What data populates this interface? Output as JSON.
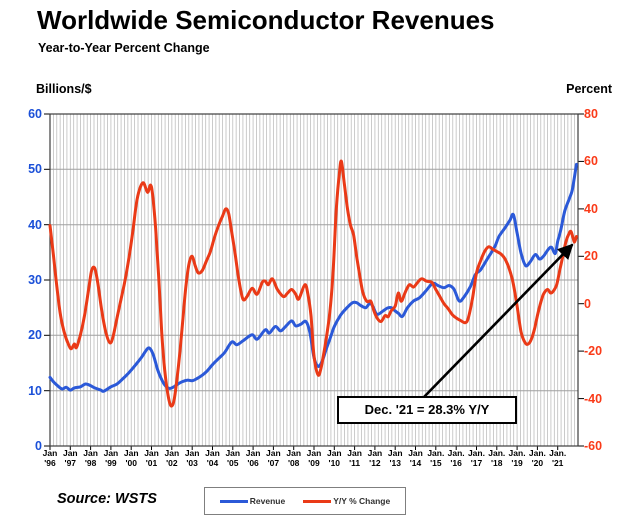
{
  "title": "Worldwide Semiconductor Revenues",
  "subtitle": "Year-to-Year Percent Change",
  "source": "Source: WSTS",
  "chart_data": {
    "type": "line",
    "title": "Worldwide Semiconductor Revenues",
    "subtitle": "Year-to-Year Percent Change",
    "left_axis": {
      "label": "Billions/$",
      "min": 0,
      "max": 60,
      "ticks": [
        0,
        10,
        20,
        30,
        40,
        50,
        60
      ],
      "color": "#1b50d8"
    },
    "right_axis": {
      "label": "Percent",
      "min": -60,
      "max": 80,
      "ticks": [
        -60,
        -40,
        -20,
        0,
        20,
        40,
        60,
        80
      ],
      "color": "#fa3a18"
    },
    "x_axis": {
      "start": 1996,
      "end": 2022,
      "labels": [
        {
          "m": "Jan",
          "y": "'96"
        },
        {
          "m": "Jan",
          "y": "'97"
        },
        {
          "m": "Jan",
          "y": "'98"
        },
        {
          "m": "Jan",
          "y": "'99"
        },
        {
          "m": "Jan",
          "y": "'00"
        },
        {
          "m": "Jan",
          "y": "'01"
        },
        {
          "m": "Jan",
          "y": "'02"
        },
        {
          "m": "Jan",
          "y": "'03"
        },
        {
          "m": "Jan",
          "y": "'04"
        },
        {
          "m": "Jan",
          "y": "'05"
        },
        {
          "m": "Jan",
          "y": "'06"
        },
        {
          "m": "Jan",
          "y": "'07"
        },
        {
          "m": "Jan",
          "y": "'08"
        },
        {
          "m": "Jan",
          "y": "'09"
        },
        {
          "m": "Jan",
          "y": "'10"
        },
        {
          "m": "Jan",
          "y": "'11"
        },
        {
          "m": "Jan",
          "y": "'12"
        },
        {
          "m": "Jan",
          "y": "'13"
        },
        {
          "m": "Jan",
          "y": "'14"
        },
        {
          "m": "Jan.",
          "y": "'15"
        },
        {
          "m": "Jan.",
          "y": "'16"
        },
        {
          "m": "Jan.",
          "y": "'17"
        },
        {
          "m": "Jan.",
          "y": "'18"
        },
        {
          "m": "Jan.",
          "y": "'19"
        },
        {
          "m": "Jan.",
          "y": "'20"
        },
        {
          "m": "Jan.",
          "y": "'21"
        }
      ]
    },
    "grid": {
      "h_color": "#a0a0a0",
      "v_color": "#bdbdbd",
      "v_interval_months": 2,
      "border_color": "#3c3c3c"
    },
    "series": [
      {
        "name": "Revenue",
        "axis": "left",
        "color": "#2b59d8",
        "width": 3,
        "points": [
          [
            1996.0,
            12.4
          ],
          [
            1996.17,
            11.6
          ],
          [
            1996.4,
            10.8
          ],
          [
            1996.6,
            10.3
          ],
          [
            1996.8,
            10.6
          ],
          [
            1997.0,
            10.1
          ],
          [
            1997.2,
            10.5
          ],
          [
            1997.5,
            10.7
          ],
          [
            1997.75,
            11.2
          ],
          [
            1998.0,
            10.9
          ],
          [
            1998.2,
            10.5
          ],
          [
            1998.5,
            10.1
          ],
          [
            1998.65,
            9.9
          ],
          [
            1999.0,
            10.7
          ],
          [
            1999.3,
            11.2
          ],
          [
            1999.6,
            12.2
          ],
          [
            1999.9,
            13.3
          ],
          [
            2000.2,
            14.6
          ],
          [
            2000.5,
            16.0
          ],
          [
            2000.8,
            17.6
          ],
          [
            2000.95,
            17.5
          ],
          [
            2001.1,
            16.3
          ],
          [
            2001.3,
            13.8
          ],
          [
            2001.5,
            12.0
          ],
          [
            2001.7,
            10.8
          ],
          [
            2001.9,
            10.4
          ],
          [
            2002.1,
            10.7
          ],
          [
            2002.3,
            11.2
          ],
          [
            2002.5,
            11.6
          ],
          [
            2002.75,
            11.9
          ],
          [
            2003.0,
            11.8
          ],
          [
            2003.2,
            12.1
          ],
          [
            2003.5,
            12.8
          ],
          [
            2003.75,
            13.6
          ],
          [
            2004.0,
            14.7
          ],
          [
            2004.3,
            15.8
          ],
          [
            2004.6,
            16.9
          ],
          [
            2004.95,
            18.8
          ],
          [
            2005.2,
            18.3
          ],
          [
            2005.5,
            19.0
          ],
          [
            2005.95,
            20.1
          ],
          [
            2006.2,
            19.3
          ],
          [
            2006.6,
            21.0
          ],
          [
            2006.8,
            20.4
          ],
          [
            2007.1,
            21.6
          ],
          [
            2007.35,
            20.8
          ],
          [
            2007.6,
            21.6
          ],
          [
            2007.9,
            22.6
          ],
          [
            2008.1,
            21.7
          ],
          [
            2008.35,
            22.0
          ],
          [
            2008.6,
            22.5
          ],
          [
            2008.8,
            20.5
          ],
          [
            2009.0,
            16.0
          ],
          [
            2009.2,
            14.4
          ],
          [
            2009.4,
            15.3
          ],
          [
            2009.6,
            17.5
          ],
          [
            2009.8,
            19.5
          ],
          [
            2010.0,
            21.6
          ],
          [
            2010.3,
            23.6
          ],
          [
            2010.6,
            24.9
          ],
          [
            2010.9,
            25.9
          ],
          [
            2011.1,
            25.9
          ],
          [
            2011.3,
            25.4
          ],
          [
            2011.55,
            25.0
          ],
          [
            2011.75,
            25.8
          ],
          [
            2011.9,
            25.2
          ],
          [
            2012.1,
            23.8
          ],
          [
            2012.4,
            24.4
          ],
          [
            2012.6,
            24.9
          ],
          [
            2012.8,
            25.0
          ],
          [
            2013.0,
            24.4
          ],
          [
            2013.15,
            24.0
          ],
          [
            2013.35,
            23.4
          ],
          [
            2013.6,
            25.0
          ],
          [
            2013.9,
            26.2
          ],
          [
            2014.2,
            26.8
          ],
          [
            2014.5,
            28.0
          ],
          [
            2014.85,
            29.4
          ],
          [
            2015.1,
            29.0
          ],
          [
            2015.4,
            28.6
          ],
          [
            2015.65,
            29.0
          ],
          [
            2015.9,
            28.3
          ],
          [
            2016.15,
            26.2
          ],
          [
            2016.4,
            27.0
          ],
          [
            2016.7,
            28.8
          ],
          [
            2016.95,
            31.0
          ],
          [
            2017.2,
            31.8
          ],
          [
            2017.5,
            33.6
          ],
          [
            2017.9,
            36.0
          ],
          [
            2018.1,
            37.8
          ],
          [
            2018.4,
            39.4
          ],
          [
            2018.65,
            40.8
          ],
          [
            2018.82,
            41.8
          ],
          [
            2019.0,
            38.5
          ],
          [
            2019.2,
            34.8
          ],
          [
            2019.42,
            32.6
          ],
          [
            2019.65,
            33.3
          ],
          [
            2019.9,
            34.6
          ],
          [
            2020.1,
            33.8
          ],
          [
            2020.3,
            34.3
          ],
          [
            2020.55,
            35.6
          ],
          [
            2020.7,
            35.9
          ],
          [
            2020.88,
            34.8
          ],
          [
            2021.0,
            37.0
          ],
          [
            2021.15,
            39.0
          ],
          [
            2021.35,
            42.5
          ],
          [
            2021.55,
            44.5
          ],
          [
            2021.7,
            46.0
          ],
          [
            2021.8,
            48.0
          ],
          [
            2021.92,
            50.9
          ]
        ]
      },
      {
        "name": "Y/Y % Change",
        "axis": "right",
        "color": "#ea3a17",
        "width": 3,
        "points": [
          [
            1996.0,
            33
          ],
          [
            1996.15,
            22
          ],
          [
            1996.3,
            10
          ],
          [
            1996.5,
            -4
          ],
          [
            1996.7,
            -12
          ],
          [
            1996.9,
            -17
          ],
          [
            1997.05,
            -19
          ],
          [
            1997.2,
            -17
          ],
          [
            1997.3,
            -18.5
          ],
          [
            1997.5,
            -13
          ],
          [
            1997.7,
            -5
          ],
          [
            1997.9,
            6
          ],
          [
            1998.05,
            14
          ],
          [
            1998.2,
            15
          ],
          [
            1998.35,
            9
          ],
          [
            1998.55,
            -3
          ],
          [
            1998.75,
            -12
          ],
          [
            1998.95,
            -16.5
          ],
          [
            1999.1,
            -14
          ],
          [
            1999.3,
            -6
          ],
          [
            1999.5,
            2
          ],
          [
            1999.7,
            10
          ],
          [
            1999.9,
            20
          ],
          [
            2000.1,
            32
          ],
          [
            2000.25,
            42
          ],
          [
            2000.4,
            48
          ],
          [
            2000.6,
            51
          ],
          [
            2000.8,
            47
          ],
          [
            2000.95,
            50
          ],
          [
            2001.05,
            46
          ],
          [
            2001.2,
            32
          ],
          [
            2001.35,
            12
          ],
          [
            2001.5,
            -12
          ],
          [
            2001.65,
            -28
          ],
          [
            2001.8,
            -38
          ],
          [
            2001.95,
            -43
          ],
          [
            2002.1,
            -41
          ],
          [
            2002.25,
            -32
          ],
          [
            2002.4,
            -20
          ],
          [
            2002.55,
            -6
          ],
          [
            2002.7,
            8
          ],
          [
            2002.85,
            17
          ],
          [
            2003.0,
            20
          ],
          [
            2003.15,
            16
          ],
          [
            2003.3,
            13
          ],
          [
            2003.5,
            14
          ],
          [
            2003.7,
            18
          ],
          [
            2003.9,
            22
          ],
          [
            2004.1,
            28
          ],
          [
            2004.3,
            33
          ],
          [
            2004.5,
            37
          ],
          [
            2004.65,
            40
          ],
          [
            2004.8,
            38
          ],
          [
            2004.95,
            30
          ],
          [
            2005.1,
            22
          ],
          [
            2005.3,
            10
          ],
          [
            2005.5,
            2
          ],
          [
            2005.7,
            3
          ],
          [
            2005.95,
            6.5
          ],
          [
            2006.2,
            4
          ],
          [
            2006.45,
            9
          ],
          [
            2006.6,
            9.5
          ],
          [
            2006.75,
            8
          ],
          [
            2006.95,
            10.5
          ],
          [
            2007.2,
            6
          ],
          [
            2007.5,
            3
          ],
          [
            2007.7,
            4.5
          ],
          [
            2007.9,
            6
          ],
          [
            2008.1,
            4
          ],
          [
            2008.25,
            2
          ],
          [
            2008.55,
            8
          ],
          [
            2008.7,
            4
          ],
          [
            2008.85,
            -5
          ],
          [
            2009.0,
            -22
          ],
          [
            2009.2,
            -30
          ],
          [
            2009.35,
            -27
          ],
          [
            2009.5,
            -20
          ],
          [
            2009.65,
            -12
          ],
          [
            2009.8,
            -2
          ],
          [
            2009.95,
            15
          ],
          [
            2010.1,
            40
          ],
          [
            2010.25,
            55
          ],
          [
            2010.35,
            60
          ],
          [
            2010.5,
            50
          ],
          [
            2010.65,
            40
          ],
          [
            2010.8,
            33
          ],
          [
            2010.95,
            29
          ],
          [
            2011.1,
            20
          ],
          [
            2011.25,
            12
          ],
          [
            2011.4,
            5
          ],
          [
            2011.6,
            1
          ],
          [
            2011.8,
            1
          ],
          [
            2011.95,
            -3
          ],
          [
            2012.1,
            -6
          ],
          [
            2012.3,
            -7.5
          ],
          [
            2012.5,
            -5
          ],
          [
            2012.65,
            -5.5
          ],
          [
            2012.8,
            -3
          ],
          [
            2013.0,
            -1
          ],
          [
            2013.15,
            4.5
          ],
          [
            2013.3,
            1
          ],
          [
            2013.5,
            5
          ],
          [
            2013.7,
            8
          ],
          [
            2013.9,
            7
          ],
          [
            2014.1,
            9
          ],
          [
            2014.3,
            10.5
          ],
          [
            2014.55,
            9.5
          ],
          [
            2014.8,
            9
          ],
          [
            2015.0,
            6
          ],
          [
            2015.2,
            3
          ],
          [
            2015.4,
            0
          ],
          [
            2015.6,
            -2
          ],
          [
            2015.8,
            -4.5
          ],
          [
            2016.0,
            -6
          ],
          [
            2016.2,
            -7
          ],
          [
            2016.45,
            -8
          ],
          [
            2016.6,
            -6
          ],
          [
            2016.8,
            2
          ],
          [
            2017.0,
            13
          ],
          [
            2017.2,
            18
          ],
          [
            2017.4,
            22
          ],
          [
            2017.6,
            24
          ],
          [
            2017.8,
            23
          ],
          [
            2018.0,
            22
          ],
          [
            2018.2,
            21
          ],
          [
            2018.4,
            19
          ],
          [
            2018.6,
            15
          ],
          [
            2018.8,
            9
          ],
          [
            2019.0,
            -1
          ],
          [
            2019.2,
            -12
          ],
          [
            2019.4,
            -16.5
          ],
          [
            2019.55,
            -17
          ],
          [
            2019.7,
            -15
          ],
          [
            2019.85,
            -11
          ],
          [
            2020.0,
            -5
          ],
          [
            2020.15,
            0
          ],
          [
            2020.3,
            4
          ],
          [
            2020.5,
            6
          ],
          [
            2020.65,
            4.5
          ],
          [
            2020.8,
            5.5
          ],
          [
            2020.95,
            8
          ],
          [
            2021.1,
            14
          ],
          [
            2021.25,
            20
          ],
          [
            2021.4,
            26
          ],
          [
            2021.55,
            29.5
          ],
          [
            2021.65,
            30.5
          ],
          [
            2021.75,
            28
          ],
          [
            2021.83,
            26
          ],
          [
            2021.92,
            28.3
          ]
        ]
      }
    ],
    "legend": {
      "items": [
        {
          "label": "Revenue",
          "color": "#2b59d8"
        },
        {
          "label": "Y/Y % Change",
          "color": "#ea3a17"
        }
      ],
      "position": "bottom"
    },
    "annotation": {
      "text": "Dec. '21 = 28.3% Y/Y",
      "target_x": 2021.92,
      "target_value": 28.3
    }
  }
}
